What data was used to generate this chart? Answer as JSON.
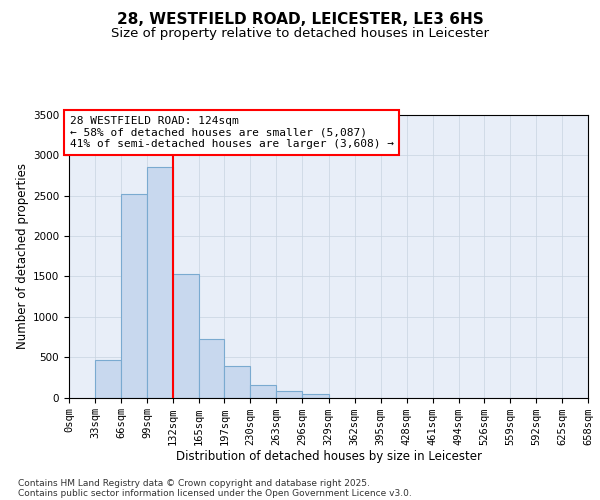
{
  "title_line1": "28, WESTFIELD ROAD, LEICESTER, LE3 6HS",
  "title_line2": "Size of property relative to detached houses in Leicester",
  "xlabel": "Distribution of detached houses by size in Leicester",
  "ylabel": "Number of detached properties",
  "footnote1": "Contains HM Land Registry data © Crown copyright and database right 2025.",
  "footnote2": "Contains public sector information licensed under the Open Government Licence v3.0.",
  "annotation_line1": "28 WESTFIELD ROAD: 124sqm",
  "annotation_line2": "← 58% of detached houses are smaller (5,087)",
  "annotation_line3": "41% of semi-detached houses are larger (3,608) →",
  "bin_edges": [
    0,
    33,
    66,
    99,
    132,
    165,
    197,
    230,
    263,
    296,
    329,
    362,
    395,
    428,
    461,
    494,
    526,
    559,
    592,
    625,
    658
  ],
  "bin_labels": [
    "0sqm",
    "33sqm",
    "66sqm",
    "99sqm",
    "132sqm",
    "165sqm",
    "197sqm",
    "230sqm",
    "263sqm",
    "296sqm",
    "329sqm",
    "362sqm",
    "395sqm",
    "428sqm",
    "461sqm",
    "494sqm",
    "526sqm",
    "559sqm",
    "592sqm",
    "625sqm",
    "658sqm"
  ],
  "bar_heights": [
    0,
    470,
    2520,
    2850,
    1530,
    730,
    390,
    150,
    85,
    45,
    0,
    0,
    0,
    0,
    0,
    0,
    0,
    0,
    0,
    0
  ],
  "bar_color": "#c8d8ee",
  "bar_edge_color": "#7aaad0",
  "vline_color": "red",
  "ylim": [
    0,
    3500
  ],
  "yticks": [
    0,
    500,
    1000,
    1500,
    2000,
    2500,
    3000,
    3500
  ],
  "grid_color": "#c8d4e0",
  "bg_color": "#e8eef8",
  "annotation_box_color": "white",
  "annotation_box_edge": "red",
  "title_fontsize": 11,
  "subtitle_fontsize": 9.5,
  "axis_label_fontsize": 8.5,
  "tick_fontsize": 7.5,
  "annotation_fontsize": 8
}
